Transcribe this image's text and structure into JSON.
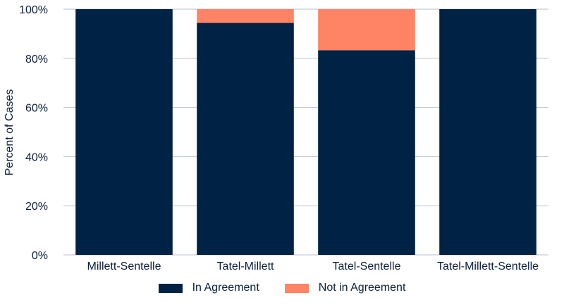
{
  "chart_data": {
    "type": "bar",
    "stacked": true,
    "categories": [
      "Millett-Sentelle",
      "Tatel-Millett",
      "Tatel-Sentelle",
      "Tatel-Millett-Sentelle"
    ],
    "series": [
      {
        "name": "In Agreement",
        "values": [
          100,
          94.4,
          83.3,
          100
        ],
        "color": "#002244"
      },
      {
        "name": "Not in Agreement",
        "values": [
          0,
          5.6,
          16.7,
          0
        ],
        "color": "#ff8364"
      }
    ],
    "title": "",
    "xlabel": "",
    "ylabel": "Percent of Cases",
    "ylim": [
      0,
      100
    ],
    "yticks": [
      "0%",
      "20%",
      "40%",
      "60%",
      "80%",
      "100%"
    ],
    "ytick_values": [
      0,
      20,
      40,
      60,
      80,
      100
    ],
    "grid": "horizontal",
    "legend_position": "bottom",
    "grid_color": "#b8c2cc"
  }
}
